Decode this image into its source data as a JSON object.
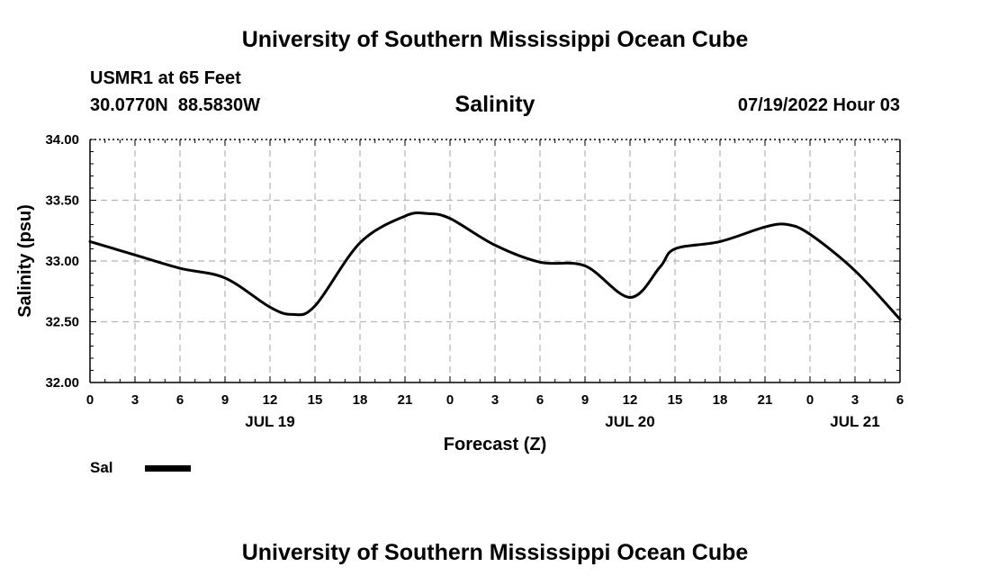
{
  "header": {
    "title": "University of Southern Mississippi Ocean Cube",
    "station": "USMR1 at 65 Feet",
    "coords": "30.0770N  88.5830W",
    "variable": "Salinity",
    "datetime": "07/19/2022 Hour 03"
  },
  "footer": {
    "title": "University of Southern Mississippi Ocean Cube"
  },
  "legend": {
    "label": "Sal"
  },
  "colors": {
    "line": "#000000",
    "grid": "#b4b4b4"
  },
  "chart_data": {
    "type": "line",
    "title": "Salinity",
    "xlabel": "Forecast (Z)",
    "ylabel": "Salinity (psu)",
    "xlim": [
      0,
      54
    ],
    "ylim": [
      32.0,
      34.0
    ],
    "grid": true,
    "legend_position": "bottom-left",
    "x_ticks": [
      0,
      3,
      6,
      9,
      12,
      15,
      18,
      21,
      24,
      27,
      30,
      33,
      36,
      39,
      42,
      45,
      48,
      51,
      54
    ],
    "x_tick_labels": [
      "0",
      "3",
      "6",
      "9",
      "12",
      "15",
      "18",
      "21",
      "0",
      "3",
      "6",
      "9",
      "12",
      "15",
      "18",
      "21",
      "0",
      "3",
      "6"
    ],
    "date_labels": [
      {
        "x": 12,
        "text": "JUL 19"
      },
      {
        "x": 36,
        "text": "JUL 20"
      },
      {
        "x": 51,
        "text": "JUL 21"
      }
    ],
    "y_ticks": [
      32.0,
      32.5,
      33.0,
      33.5,
      34.0
    ],
    "y_tick_labels": [
      "32.00",
      "32.50",
      "33.00",
      "33.50",
      "34.00"
    ],
    "series": [
      {
        "name": "Sal",
        "x": [
          0,
          3,
          6,
          9,
          12,
          13.5,
          15,
          18,
          21,
          22.5,
          24,
          27,
          30,
          33,
          36,
          38,
          39,
          42,
          45,
          46.5,
          48,
          51,
          54
        ],
        "values": [
          33.16,
          33.05,
          32.94,
          32.86,
          32.62,
          32.56,
          32.63,
          33.15,
          33.37,
          33.39,
          33.35,
          33.13,
          32.99,
          32.96,
          32.7,
          32.95,
          33.1,
          33.16,
          33.28,
          33.3,
          33.22,
          32.92,
          32.52
        ]
      }
    ]
  }
}
